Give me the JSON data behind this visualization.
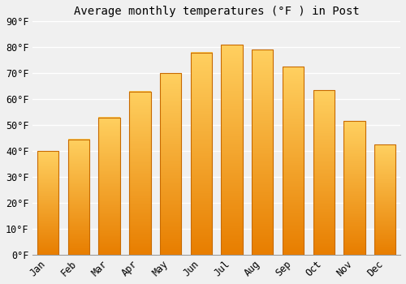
{
  "title": "Average monthly temperatures (°F ) in Post",
  "months": [
    "Jan",
    "Feb",
    "Mar",
    "Apr",
    "May",
    "Jun",
    "Jul",
    "Aug",
    "Sep",
    "Oct",
    "Nov",
    "Dec"
  ],
  "values": [
    40,
    44.5,
    53,
    63,
    70,
    78,
    81,
    79,
    72.5,
    63.5,
    51.5,
    42.5
  ],
  "bar_color_bottom": "#E87E00",
  "bar_color_top": "#FFD060",
  "bar_edge_color": "#C86A00",
  "background_color": "#f0f0f0",
  "grid_color": "#ffffff",
  "ylim": [
    0,
    90
  ],
  "yticks": [
    0,
    10,
    20,
    30,
    40,
    50,
    60,
    70,
    80,
    90
  ],
  "ytick_labels": [
    "0°F",
    "10°F",
    "20°F",
    "30°F",
    "40°F",
    "50°F",
    "60°F",
    "70°F",
    "80°F",
    "90°F"
  ],
  "title_fontsize": 10,
  "tick_fontsize": 8.5,
  "bar_width": 0.7
}
